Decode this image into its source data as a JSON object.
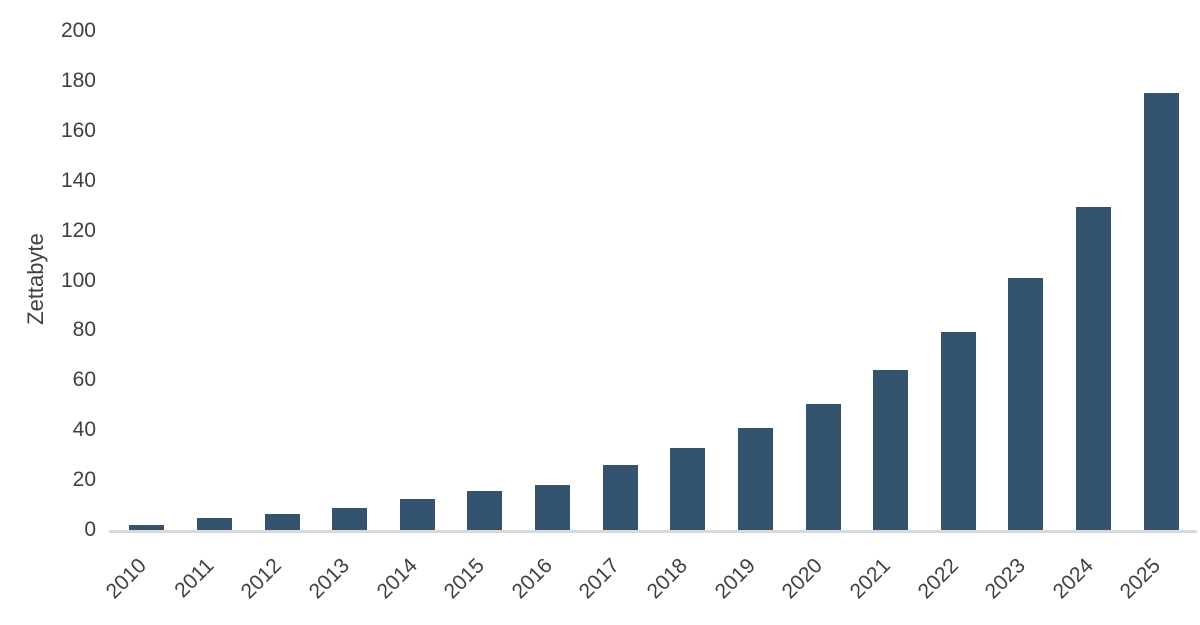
{
  "chart_data": {
    "type": "bar",
    "title": "",
    "xlabel": "",
    "ylabel": "Zettabyte",
    "categories": [
      "2010",
      "2011",
      "2012",
      "2013",
      "2014",
      "2015",
      "2016",
      "2017",
      "2018",
      "2019",
      "2020",
      "2021",
      "2022",
      "2023",
      "2024",
      "2025"
    ],
    "values": [
      2,
      5,
      6.5,
      9,
      12.5,
      15.5,
      18,
      26,
      33,
      41,
      50.5,
      64.2,
      79.5,
      101,
      129.5,
      175
    ],
    "ylim": [
      0,
      200
    ],
    "yticks": [
      0,
      20,
      40,
      60,
      80,
      100,
      120,
      140,
      160,
      180,
      200
    ],
    "grid": false,
    "legend_position": "none",
    "colors": {
      "bar": "#34536E",
      "axis_line": "#D9D9D9",
      "text": "#404040",
      "background": "#FFFFFF"
    }
  }
}
